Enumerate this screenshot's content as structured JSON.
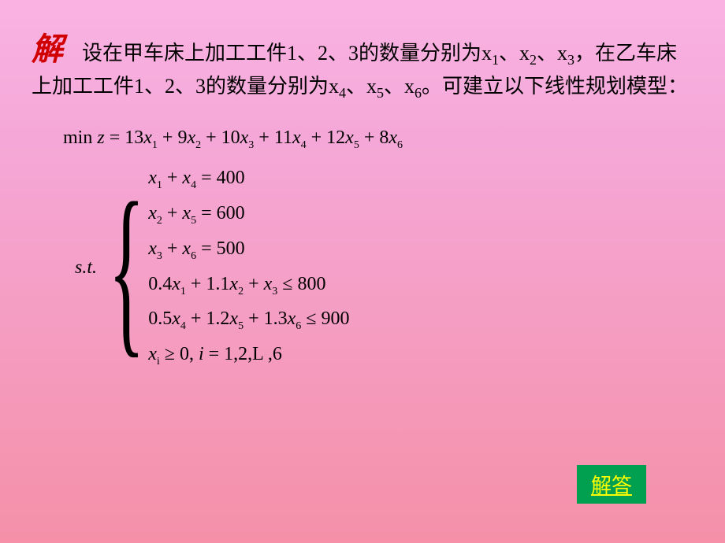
{
  "solution_label": "解",
  "intro": {
    "line1_a": "设在甲车床上加工工件1、2、3的数量分别为x",
    "line1_b": "、x",
    "line1_c": "、x",
    "line2_a": "，在乙车床上加工工件1、2、3的数量分别为x",
    "line2_b": "、x",
    "line2_c": "、x",
    "line2_d": "。可建立以下线性规划模型：",
    "sub1": "1",
    "sub2": "2",
    "sub3": "3",
    "sub4": "4",
    "sub5": "5",
    "sub6": "6"
  },
  "objective": {
    "prefix": "min",
    "var": "z",
    "eq": " = ",
    "c1": "13",
    "c2": "9",
    "c3": "10",
    "c4": "11",
    "c5": "12",
    "c6": "8",
    "x": "x",
    "s1": "1",
    "s2": "2",
    "s3": "3",
    "s4": "4",
    "s5": "5",
    "s6": "6",
    "plus": " + "
  },
  "st_label": "s.t.",
  "constraints": {
    "c1": {
      "lhs_a": "x",
      "s1": "1",
      "plus": " + ",
      "lhs_b": "x",
      "s2": "4",
      "eq": " = ",
      "rhs": "400"
    },
    "c2": {
      "lhs_a": "x",
      "s1": "2",
      "plus": " + ",
      "lhs_b": "x",
      "s2": "5",
      "eq": " = ",
      "rhs": "600"
    },
    "c3": {
      "lhs_a": "x",
      "s1": "3",
      "plus": " + ",
      "lhs_b": "x",
      "s2": "6",
      "eq": " = ",
      "rhs": "500"
    },
    "c4": {
      "a1": "0.4",
      "x1": "x",
      "s1": "1",
      "p1": " + ",
      "a2": "1.1",
      "x2": "x",
      "s2": "2",
      "p2": " + ",
      "x3": "x",
      "s3": "3",
      "le": " ≤ ",
      "rhs": "800"
    },
    "c5": {
      "a1": "0.5",
      "x1": "x",
      "s1": "4",
      "p1": " + ",
      "a2": "1.2",
      "x2": "x",
      "s2": "5",
      "p2": " + ",
      "a3": "1.3",
      "x3": "x",
      "s3": "6",
      "le": " ≤ ",
      "rhs": "900"
    },
    "c6": {
      "x": "x",
      "si": "i",
      "ge": " ≥ ",
      "zero": "0",
      "comma": ", ",
      "i": "i",
      "eq": " = ",
      "range": "1,2,L  ,6"
    }
  },
  "answer_link": "解答",
  "colors": {
    "solution_label": "#d00000",
    "answer_bg": "#00a050",
    "answer_text": "#ffff00",
    "text": "#000000"
  }
}
